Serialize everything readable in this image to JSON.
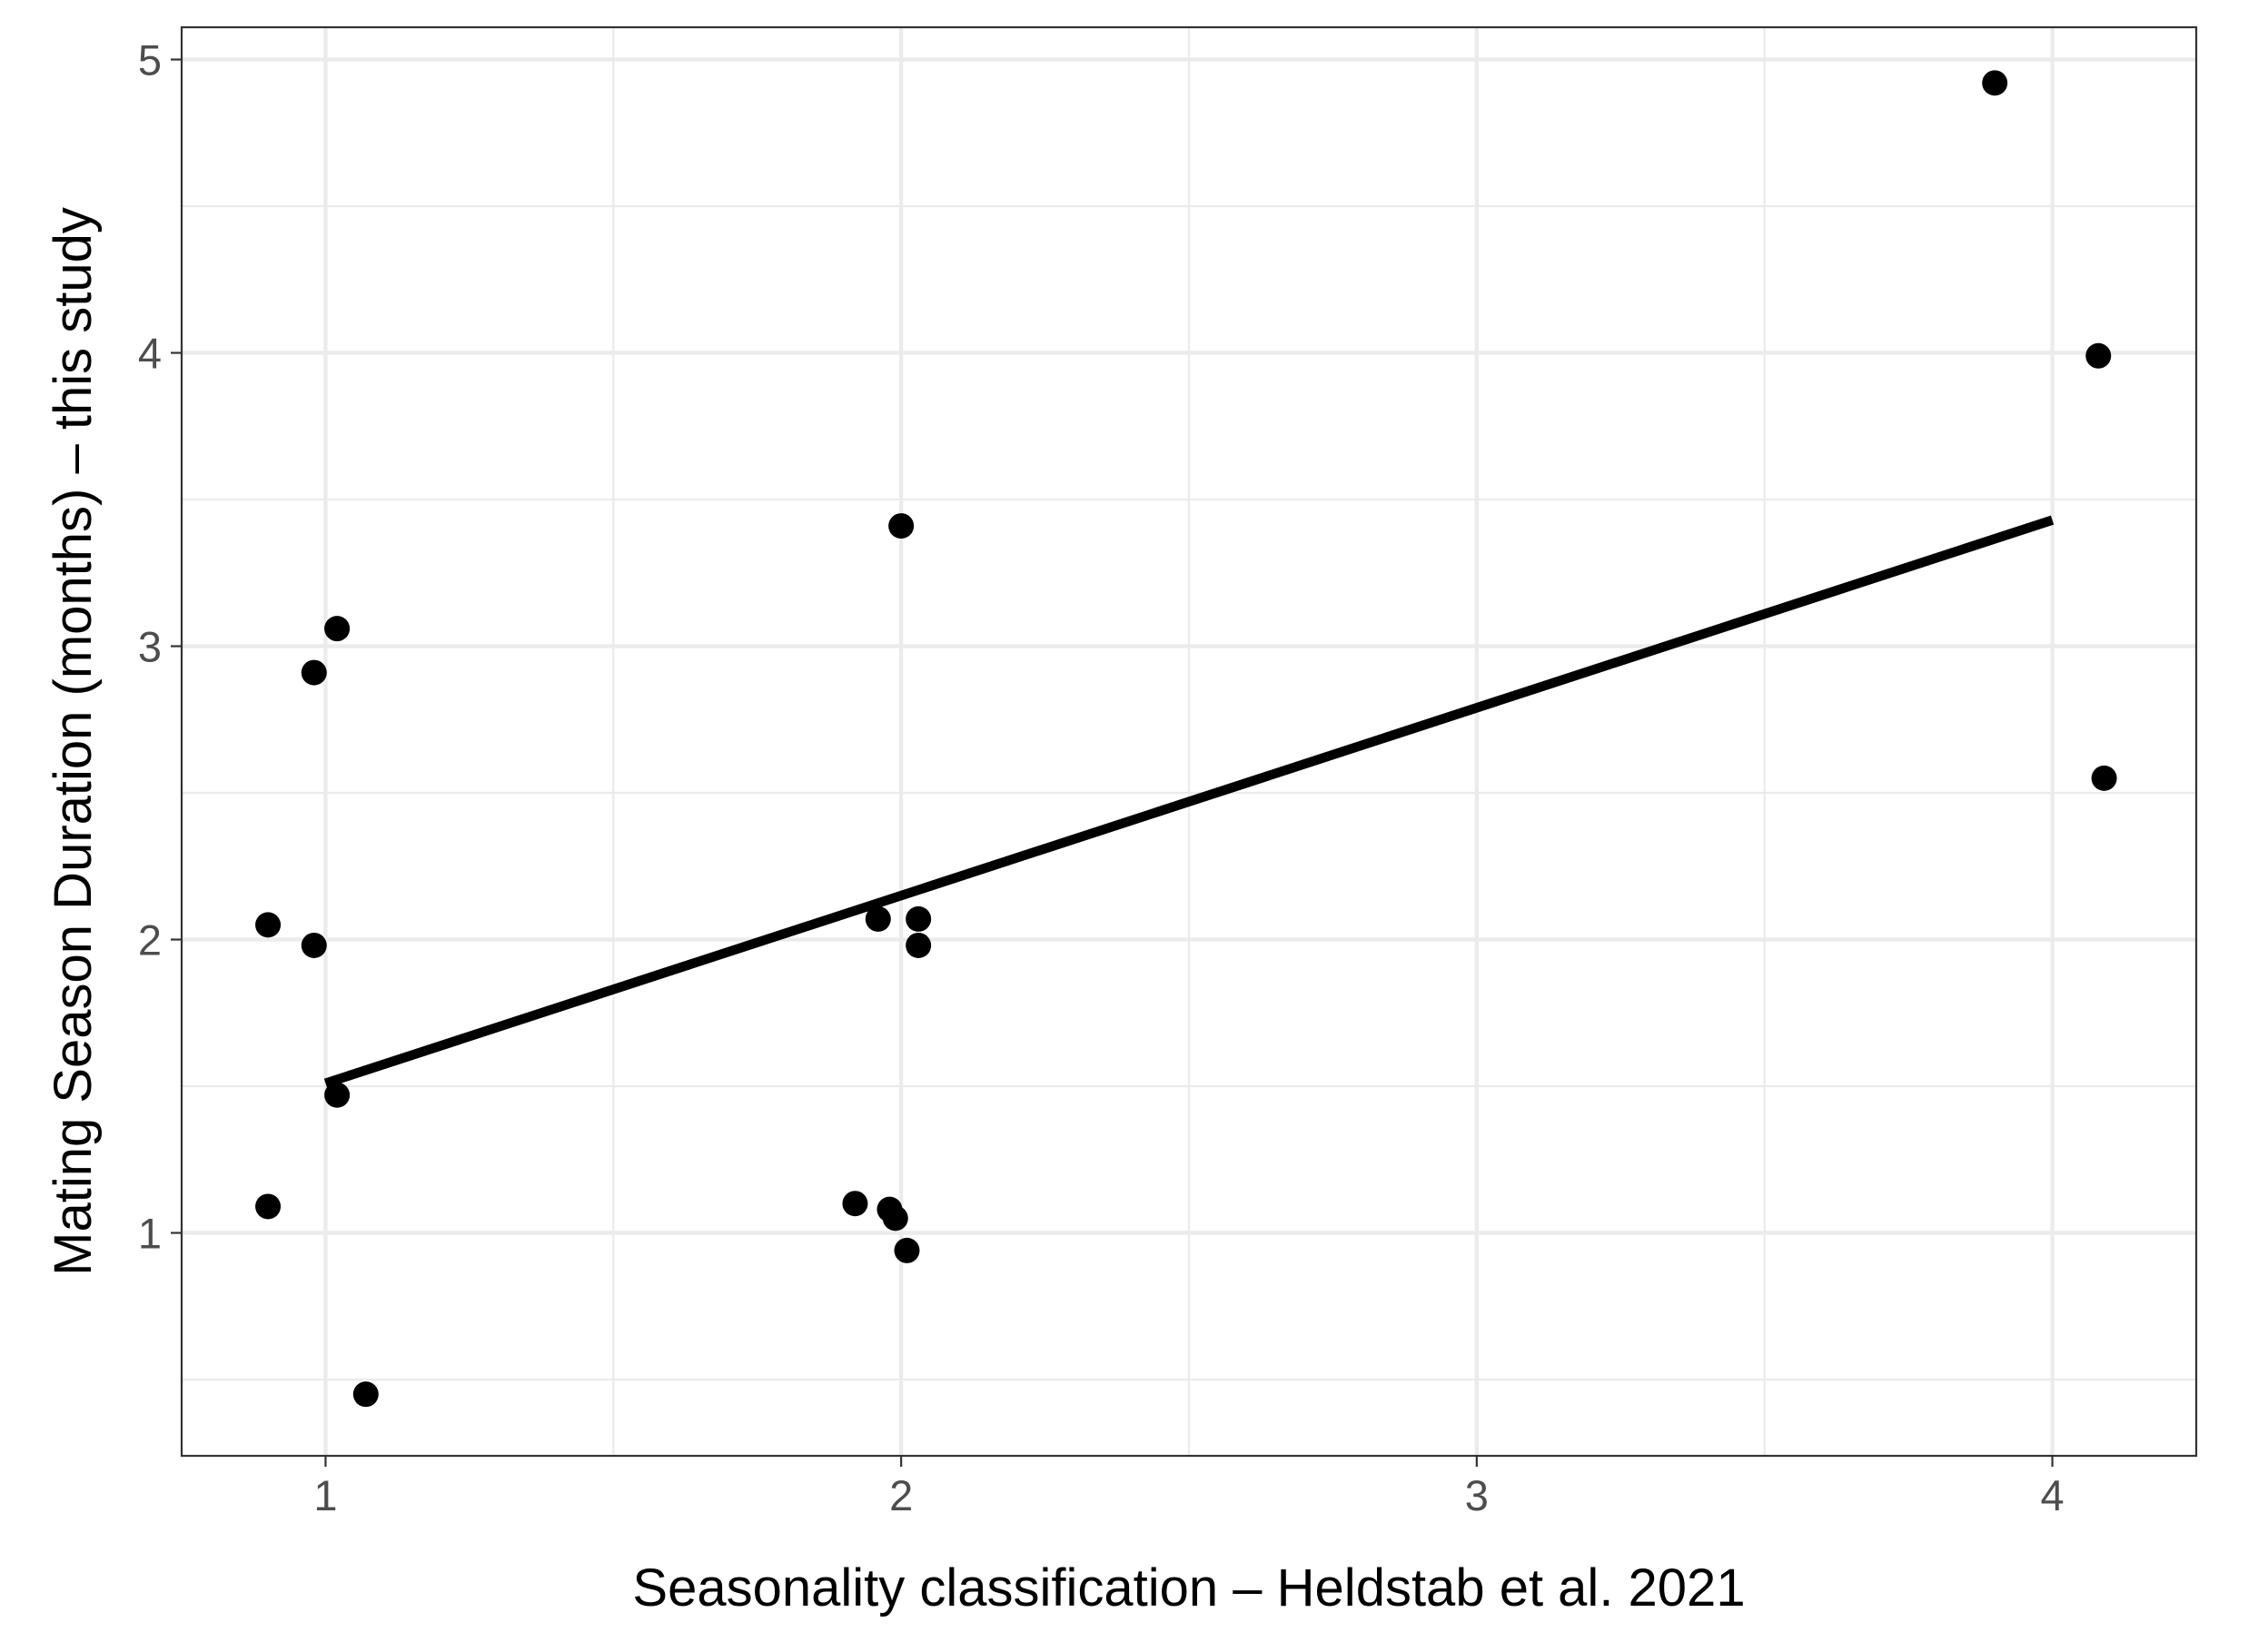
{
  "chart_data": {
    "type": "scatter",
    "xlabel": "Seasonality classification – Heldstab et al. 2021",
    "ylabel": "Mating Season Duration (months) – this study",
    "xlim": [
      0.75,
      4.25
    ],
    "ylim": [
      0.24,
      5.11
    ],
    "x_ticks": [
      1,
      2,
      3,
      4
    ],
    "y_ticks": [
      1,
      2,
      3,
      4,
      5
    ],
    "x_tick_labels": [
      "1",
      "2",
      "3",
      "4"
    ],
    "y_tick_labels": [
      "1",
      "2",
      "3",
      "4",
      "5"
    ],
    "grid": true,
    "points": [
      {
        "x": 0.9,
        "y": 2.05
      },
      {
        "x": 0.9,
        "y": 1.09
      },
      {
        "x": 0.98,
        "y": 2.91
      },
      {
        "x": 0.98,
        "y": 1.98
      },
      {
        "x": 1.02,
        "y": 3.06
      },
      {
        "x": 1.02,
        "y": 1.47
      },
      {
        "x": 1.07,
        "y": 0.45
      },
      {
        "x": 1.92,
        "y": 1.1
      },
      {
        "x": 1.96,
        "y": 2.07
      },
      {
        "x": 1.98,
        "y": 1.08
      },
      {
        "x": 1.99,
        "y": 1.05
      },
      {
        "x": 2.0,
        "y": 3.41
      },
      {
        "x": 2.01,
        "y": 0.94
      },
      {
        "x": 2.03,
        "y": 2.07
      },
      {
        "x": 2.03,
        "y": 1.98
      },
      {
        "x": 3.9,
        "y": 4.92
      },
      {
        "x": 4.08,
        "y": 3.99
      },
      {
        "x": 4.09,
        "y": 2.55
      }
    ],
    "fit_line": {
      "x": [
        1,
        4
      ],
      "y": [
        1.51,
        3.43
      ]
    }
  }
}
